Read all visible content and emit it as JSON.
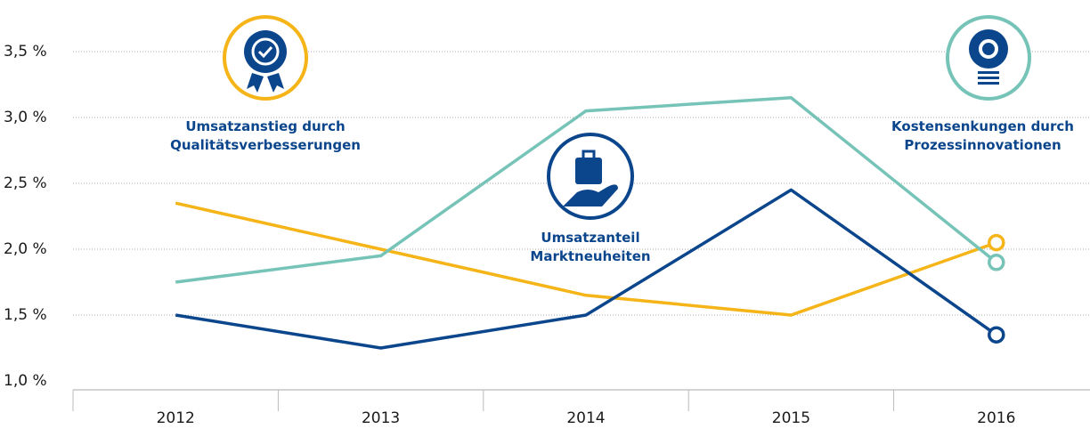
{
  "chart_data": {
    "type": "line",
    "categories": [
      "2012",
      "2013",
      "2014",
      "2015",
      "2016"
    ],
    "series": [
      {
        "name": "Umsatzanstieg durch Qualitätsverbesserungen",
        "color": "#f5b417",
        "values": [
          2.35,
          2.0,
          1.65,
          1.5,
          2.05
        ]
      },
      {
        "name": "Umsatzanteil Marktneuheiten",
        "color": "#0b468c",
        "values": [
          1.5,
          1.25,
          1.5,
          2.45,
          1.35
        ]
      },
      {
        "name": "Kostensenkungen durch Prozessinnovationen",
        "color": "#76c3b8",
        "values": [
          1.75,
          1.95,
          3.05,
          3.15,
          1.9
        ]
      }
    ],
    "ylim": [
      1.0,
      3.5
    ],
    "yticks": [
      {
        "value": 1.0,
        "label": "1,0 %"
      },
      {
        "value": 1.5,
        "label": "1,5 %"
      },
      {
        "value": 2.0,
        "label": "2,0 %"
      },
      {
        "value": 2.5,
        "label": "2,5 %"
      },
      {
        "value": 3.0,
        "label": "3,0 %"
      },
      {
        "value": 3.5,
        "label": "3,5 %"
      }
    ],
    "grid": true
  }
}
